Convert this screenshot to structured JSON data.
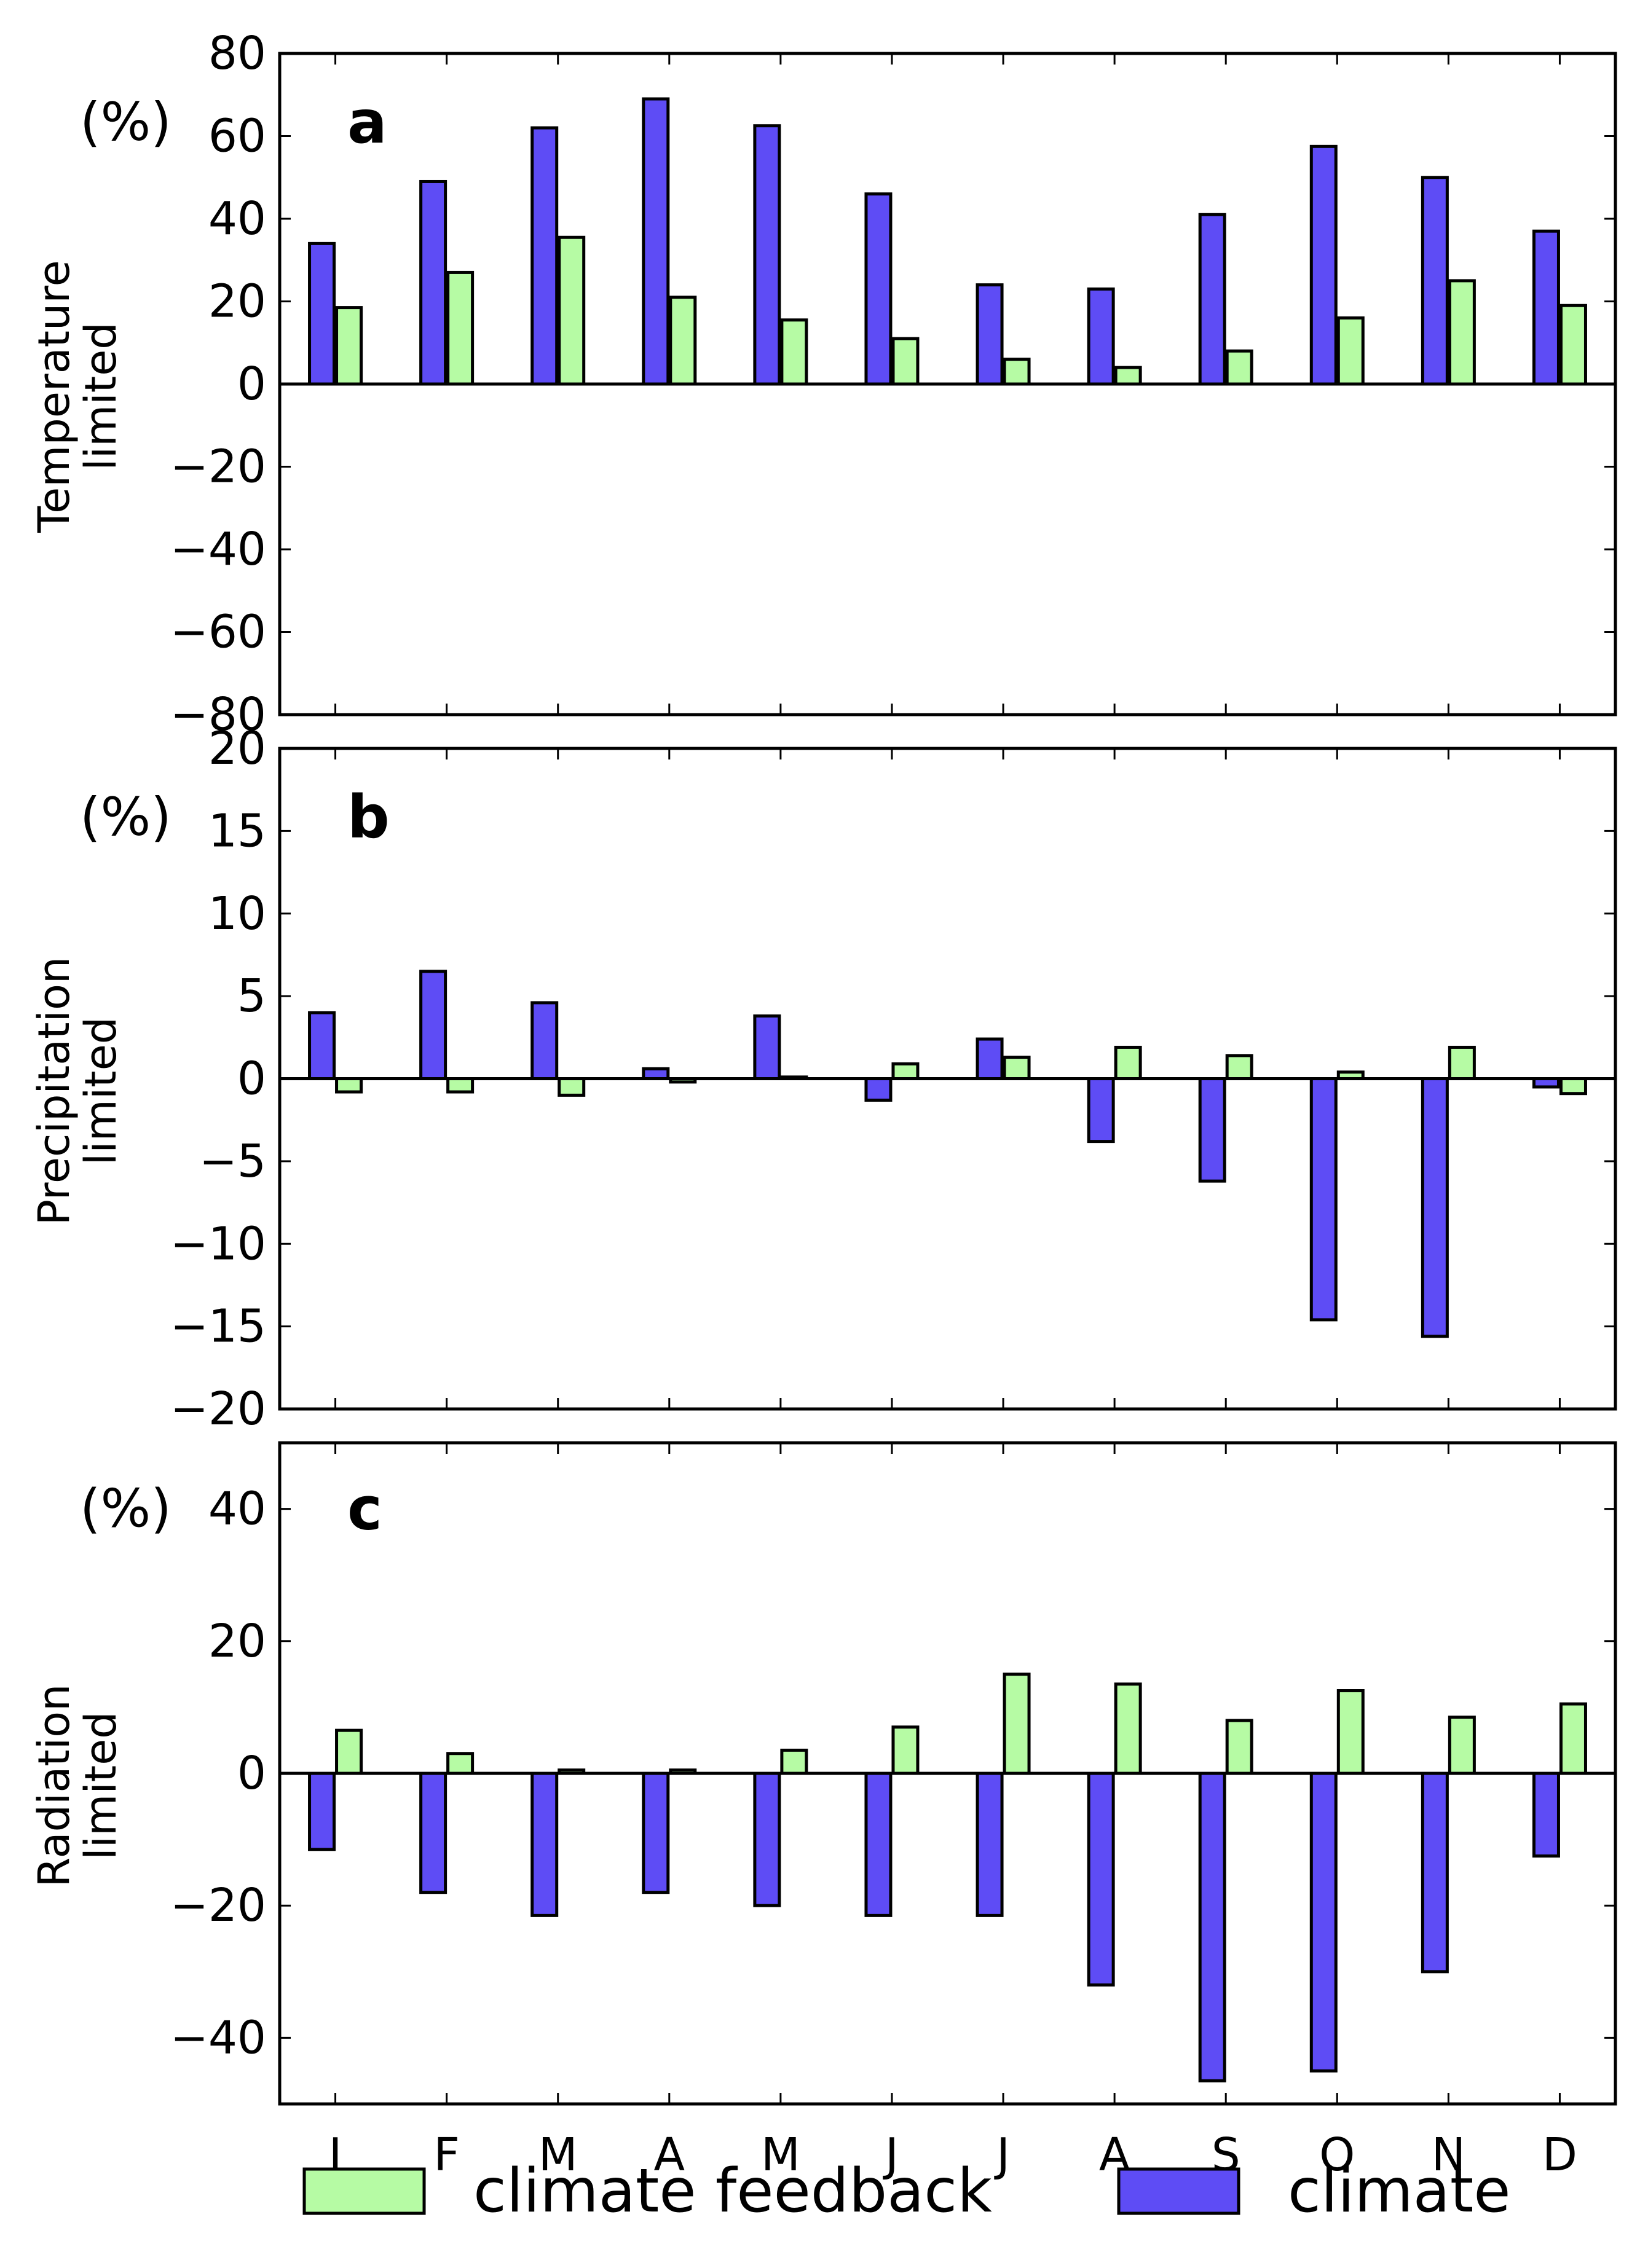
{
  "chart_data": {
    "type": "bar",
    "categories": [
      "J",
      "F",
      "M",
      "A",
      "M",
      "J",
      "J",
      "A",
      "S",
      "O",
      "N",
      "D"
    ],
    "legend": [
      {
        "name": "climate feedback",
        "color": "#b6fba4"
      },
      {
        "name": "climate",
        "color": "#5e4cf5"
      }
    ],
    "panels": [
      {
        "letter": "a",
        "unit": "(%)",
        "ylabel": [
          "Temperature",
          "limited"
        ],
        "ylim": [
          -80,
          80
        ],
        "yticks": [
          80,
          60,
          40,
          20,
          0,
          -20,
          -40,
          -60,
          -80
        ],
        "ytick_labels": [
          "80",
          "60",
          "40",
          "20",
          "0",
          "−20",
          "−40",
          "−60",
          "−80"
        ],
        "series": [
          {
            "name": "climate",
            "values": [
              34,
              49,
              62,
              69,
              62.5,
              46,
              24,
              23,
              41,
              57.5,
              50,
              37
            ]
          },
          {
            "name": "climate feedback",
            "values": [
              18.5,
              27,
              35.5,
              21,
              15.5,
              11,
              6,
              4,
              8,
              16,
              25,
              19
            ]
          }
        ]
      },
      {
        "letter": "b",
        "unit": "(%)",
        "ylabel": [
          "Precipitation",
          "limited"
        ],
        "ylim": [
          -20,
          20
        ],
        "yticks": [
          20,
          15,
          10,
          5,
          0,
          -5,
          -10,
          -15,
          -20
        ],
        "ytick_labels": [
          "20",
          "15",
          "10",
          "5",
          "0",
          "−5",
          "−10",
          "−15",
          "−20"
        ],
        "series": [
          {
            "name": "climate",
            "values": [
              4,
              6.5,
              4.6,
              0.6,
              3.8,
              -1.3,
              2.4,
              -3.8,
              -6.2,
              -14.6,
              -15.6,
              -0.5
            ]
          },
          {
            "name": "climate feedback",
            "values": [
              -0.8,
              -0.8,
              -1,
              -0.2,
              0.1,
              0.9,
              1.3,
              1.9,
              1.4,
              0.4,
              1.9,
              -0.9
            ]
          }
        ]
      },
      {
        "letter": "c",
        "unit": "(%)",
        "ylabel": [
          "Radiation",
          "limited"
        ],
        "ylim": [
          -50,
          50
        ],
        "yticks": [
          40,
          20,
          0,
          -20,
          -40
        ],
        "ytick_labels": [
          "40",
          "20",
          "0",
          "−20",
          "−40"
        ],
        "series": [
          {
            "name": "climate",
            "values": [
              -11.5,
              -18,
              -21.5,
              -18,
              -20,
              -21.5,
              -21.5,
              -32,
              -46.5,
              -45,
              -30,
              -12.5
            ]
          },
          {
            "name": "climate feedback",
            "values": [
              6.5,
              3,
              0.5,
              0.5,
              3.5,
              7,
              15,
              13.5,
              8,
              12.5,
              8.5,
              10.5
            ]
          }
        ]
      }
    ]
  }
}
